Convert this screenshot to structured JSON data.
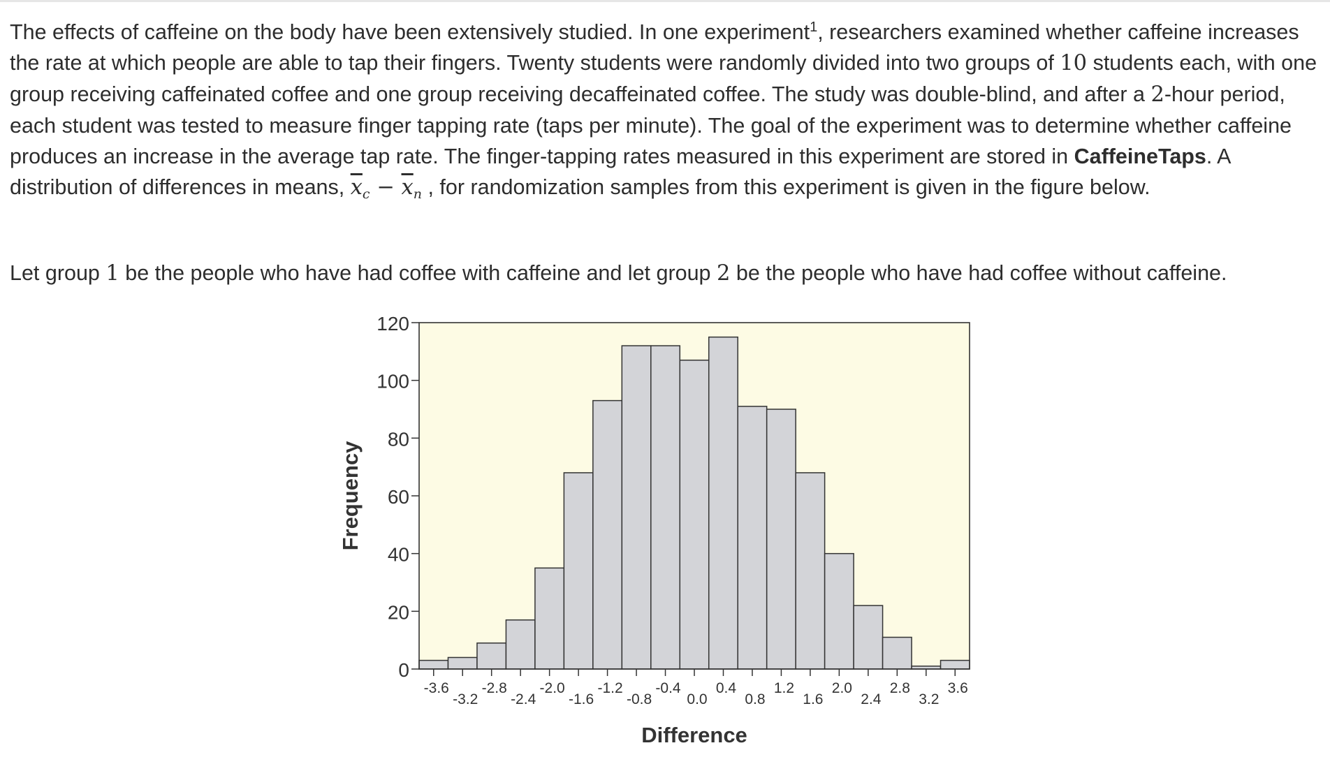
{
  "problem": {
    "p1_a": "The effects of caffeine on the body have been extensively studied. In one experiment",
    "footnote": "1",
    "p1_b": ", researchers examined whether caffeine increases the rate at which people are able to tap their fingers. Twenty students were randomly divided into two groups of ",
    "group_size": "10",
    "p1_c": " students each, with one group receiving caffeinated coffee and one group receiving decaffeinated coffee. The study was double-blind, and after a ",
    "hours": "2",
    "p1_d": "-hour period, each student was tested to measure finger tapping rate (taps per minute). The goal of the experiment was to determine whether caffeine produces an increase in the average tap rate. The finger-tapping rates measured in this experiment are stored in ",
    "dataset": "CaffeineTaps",
    "p1_e": ". A distribution of differences in means, ",
    "xbar": "x",
    "sub_c": "c",
    "minus": " − ",
    "sub_n": "n",
    "p1_f": " , for randomization samples from this experiment is given in the figure below.",
    "p2_a": "Let group ",
    "g1": "1",
    "p2_b": " be the people who have had coffee with caffeine and let group ",
    "g2": "2",
    "p2_c": " be the people who have had coffee without caffeine."
  },
  "chart_data": {
    "type": "bar",
    "xlabel": "Difference",
    "ylabel": "Frequency",
    "ylim": [
      0,
      120
    ],
    "yticks": [
      0,
      20,
      40,
      60,
      80,
      100,
      120
    ],
    "bin_edges": [
      -3.8,
      -3.4,
      -3.0,
      -2.6,
      -2.2,
      -1.8,
      -1.4,
      -1.0,
      -0.6,
      -0.2,
      0.2,
      0.6,
      1.0,
      1.4,
      1.8,
      2.2,
      2.6,
      3.0,
      3.4,
      3.8
    ],
    "values": [
      3,
      4,
      9,
      17,
      35,
      68,
      93,
      112,
      112,
      107,
      115,
      91,
      90,
      68,
      40,
      22,
      11,
      1,
      3
    ],
    "xtick_upper": [
      "-3.6",
      "-2.8",
      "-2.0",
      "-1.2",
      "-0.4",
      "0.4",
      "1.2",
      "2.0",
      "2.8",
      "3.6"
    ],
    "xtick_lower": [
      "-3.2",
      "-2.4",
      "-1.6",
      "-0.8",
      "0.0",
      "0.8",
      "1.6",
      "2.4",
      "3.2"
    ],
    "colors": {
      "plot_bg": "#fdfbe4",
      "bar_fill": "#d3d4d8",
      "bar_stroke": "#333333"
    },
    "grid": false
  }
}
